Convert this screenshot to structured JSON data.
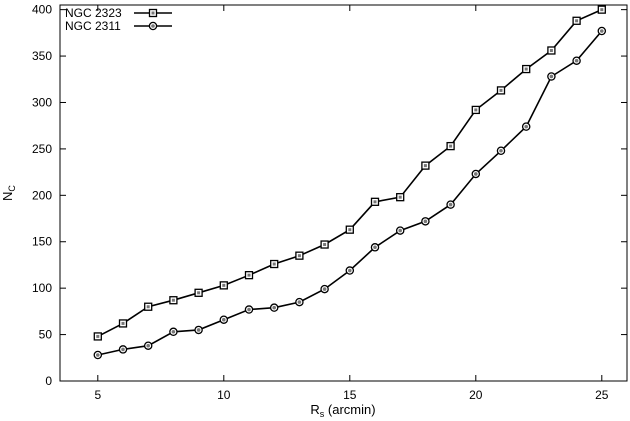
{
  "chart_data": {
    "type": "line",
    "xlabel": "R",
    "xlabel_sub": "s",
    "xlabel_unit": " (arcmin)",
    "ylabel": "N",
    "ylabel_sub": "C",
    "xlim": [
      3.5,
      26
    ],
    "ylim": [
      0,
      405
    ],
    "xticks": [
      5,
      10,
      15,
      20,
      25
    ],
    "yticks": [
      0,
      50,
      100,
      150,
      200,
      250,
      300,
      350,
      400
    ],
    "legend_position": "top-left",
    "grid": false,
    "series": [
      {
        "name": "NGC 2323",
        "marker": "square",
        "x": [
          5,
          6,
          7,
          8,
          9,
          10,
          11,
          12,
          13,
          14,
          15,
          16,
          17,
          18,
          19,
          20,
          21,
          22,
          23,
          24,
          25
        ],
        "y": [
          48,
          62,
          80,
          87,
          95,
          103,
          114,
          126,
          135,
          147,
          163,
          193,
          198,
          232,
          253,
          292,
          313,
          336,
          356,
          388,
          400
        ]
      },
      {
        "name": "NGC 2311",
        "marker": "circle",
        "x": [
          5,
          6,
          7,
          8,
          9,
          10,
          11,
          12,
          13,
          14,
          15,
          16,
          17,
          18,
          19,
          20,
          21,
          22,
          23,
          24,
          25
        ],
        "y": [
          28,
          34,
          38,
          53,
          55,
          66,
          77,
          79,
          85,
          99,
          119,
          144,
          162,
          172,
          190,
          223,
          248,
          274,
          328,
          345,
          377
        ]
      }
    ]
  }
}
